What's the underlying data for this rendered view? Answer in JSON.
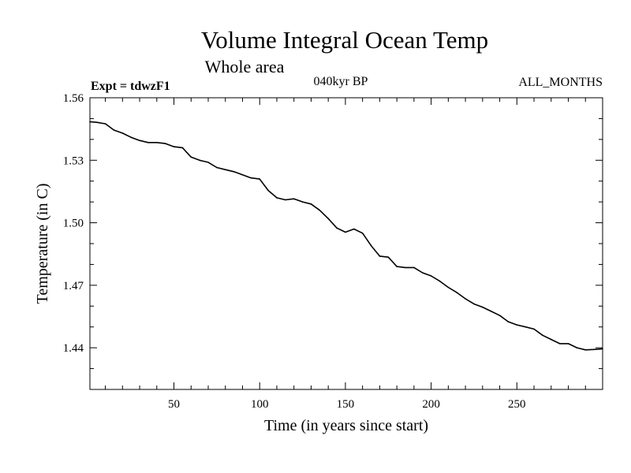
{
  "chart_data": {
    "type": "line",
    "title": "Volume Integral Ocean Temp",
    "subtitle": "Whole area",
    "expt_label": "Expt = tdwzF1",
    "period_label": "040kyr BP",
    "months_label": "ALL_MONTHS",
    "xlabel": "Time (in years since start)",
    "ylabel": "Temperature (in C)",
    "xlim": [
      1,
      300
    ],
    "ylim": [
      1.42,
      1.56
    ],
    "x_ticks": [
      50,
      100,
      150,
      200,
      250
    ],
    "x_tick_labels": [
      "50",
      "100",
      "150",
      "200",
      "250"
    ],
    "y_ticks": [
      1.44,
      1.47,
      1.5,
      1.53,
      1.56
    ],
    "y_tick_labels": [
      "1.44",
      "1.47",
      "1.50",
      "1.53",
      "1.56"
    ],
    "grid": false,
    "series": [
      {
        "name": "Volume Integral Ocean Temp",
        "x": [
          1,
          5,
          10,
          15,
          20,
          25,
          30,
          35,
          40,
          45,
          50,
          55,
          60,
          65,
          70,
          75,
          80,
          85,
          90,
          95,
          100,
          105,
          110,
          115,
          120,
          125,
          130,
          135,
          140,
          145,
          150,
          155,
          160,
          165,
          170,
          175,
          180,
          185,
          190,
          195,
          200,
          205,
          210,
          215,
          220,
          225,
          230,
          235,
          240,
          245,
          250,
          255,
          260,
          265,
          270,
          275,
          280,
          285,
          290,
          295,
          300
        ],
        "values": [
          1.5485,
          1.5482,
          1.5475,
          1.5445,
          1.543,
          1.541,
          1.5395,
          1.5385,
          1.5385,
          1.538,
          1.5365,
          1.536,
          1.5315,
          1.53,
          1.529,
          1.5265,
          1.5255,
          1.5245,
          1.523,
          1.5215,
          1.521,
          1.5155,
          1.512,
          1.511,
          1.5115,
          1.51,
          1.509,
          1.506,
          1.502,
          1.4975,
          1.4955,
          1.497,
          1.495,
          1.489,
          1.484,
          1.4835,
          1.479,
          1.4785,
          1.4785,
          1.476,
          1.4745,
          1.472,
          1.469,
          1.4665,
          1.4635,
          1.461,
          1.4595,
          1.4575,
          1.4555,
          1.4525,
          1.451,
          1.45,
          1.449,
          1.446,
          1.444,
          1.442,
          1.442,
          1.44,
          1.439,
          1.4392,
          1.4395
        ]
      }
    ]
  }
}
